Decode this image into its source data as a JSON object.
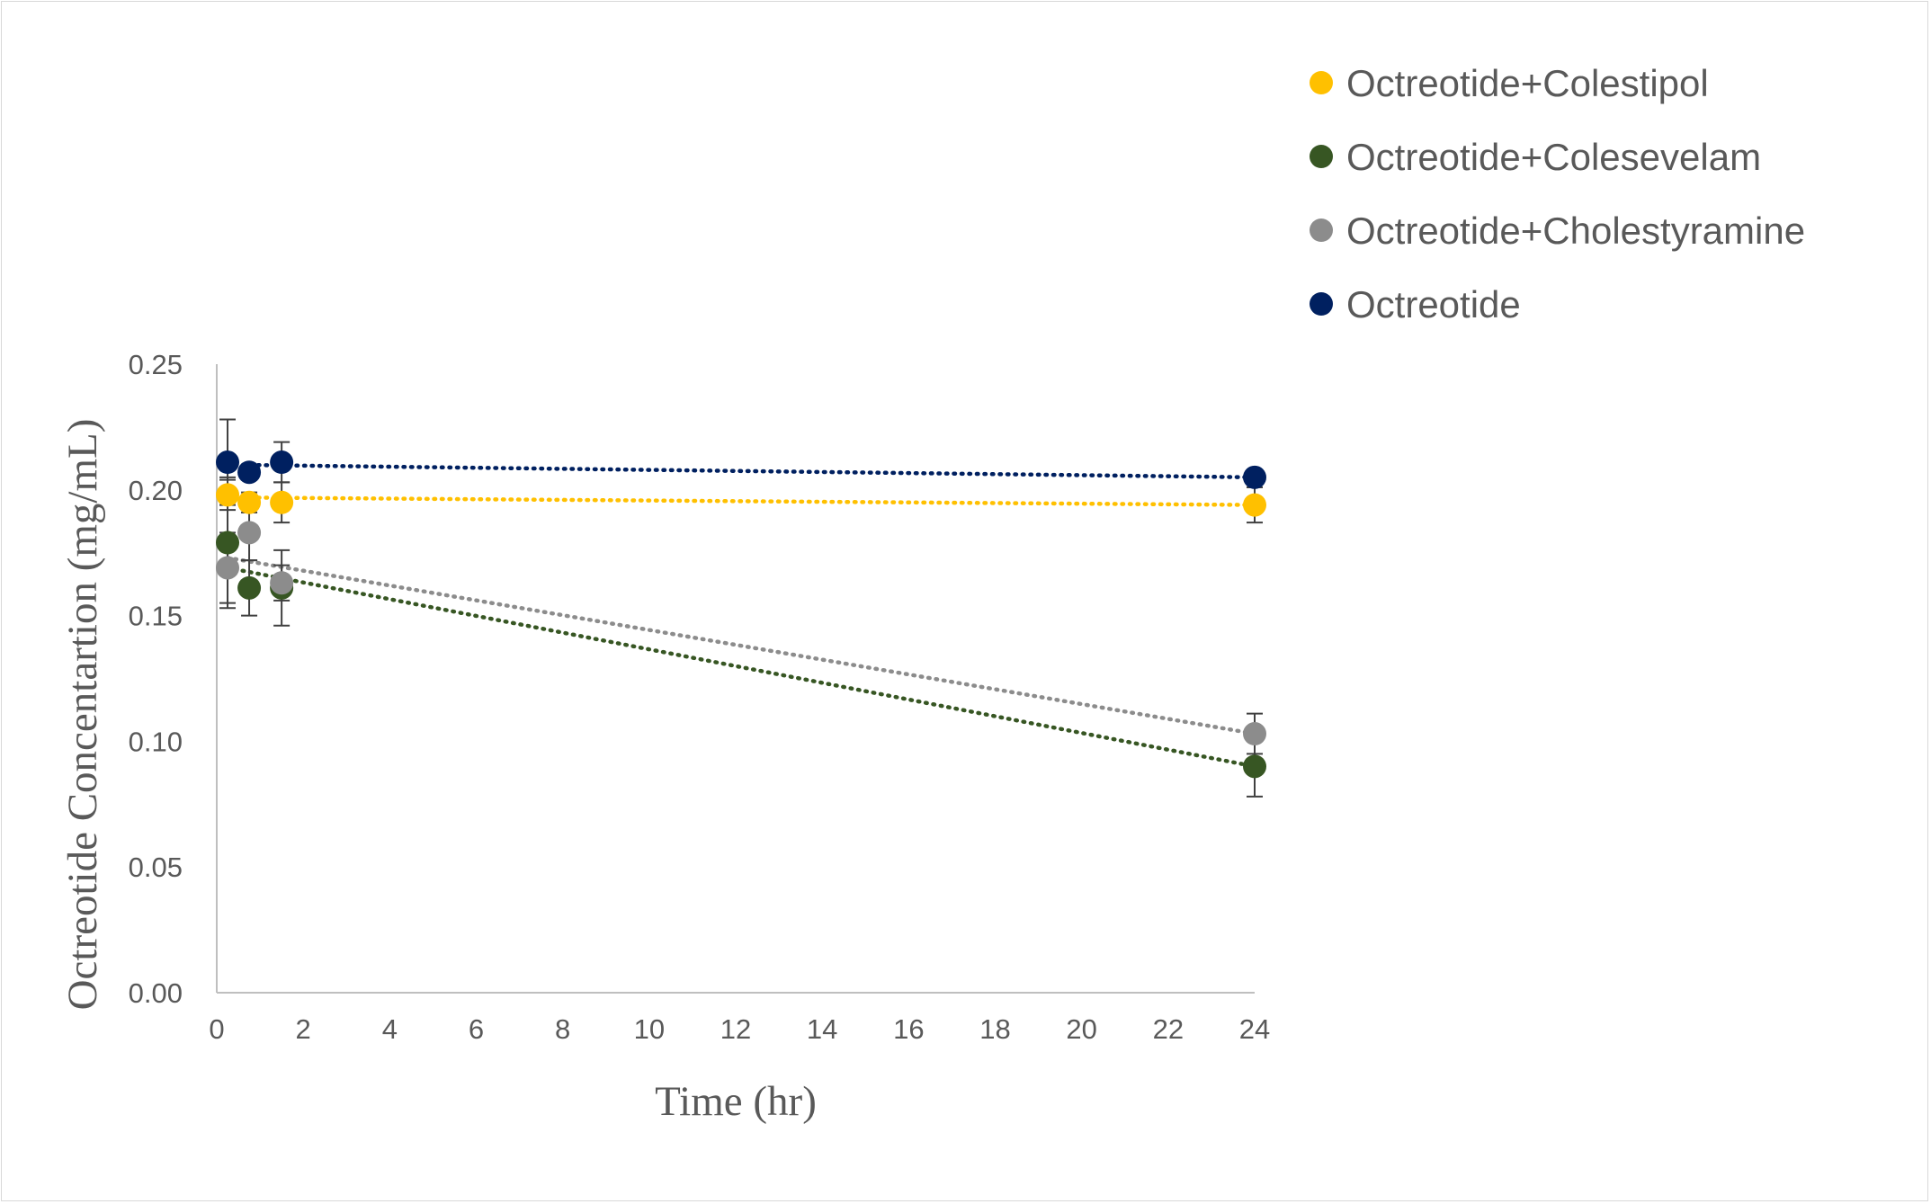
{
  "chart_data": {
    "type": "scatter",
    "title": "",
    "xlabel": "Time (hr)",
    "ylabel": "Octreotide Concentartion (mg/mL)",
    "xlim": [
      0,
      24
    ],
    "ylim": [
      0,
      0.25
    ],
    "xticks": [
      "0",
      "2",
      "4",
      "6",
      "8",
      "10",
      "12",
      "14",
      "16",
      "18",
      "20",
      "22",
      "24"
    ],
    "yticks": [
      "0.00",
      "0.05",
      "0.10",
      "0.15",
      "0.20",
      "0.25"
    ],
    "grid": false,
    "legend_position": "top-right",
    "trendlines": "linear, dotted",
    "series": [
      {
        "name": "Octreotide+Colestipol",
        "color": "#FFC000",
        "x": [
          0.25,
          0.75,
          1.5,
          24
        ],
        "y": [
          0.198,
          0.195,
          0.195,
          0.194
        ],
        "error": [
          0.006,
          0.004,
          0.008,
          0.007
        ],
        "trend": [
          0.197,
          0.194
        ]
      },
      {
        "name": "Octreotide+Colesevelam",
        "color": "#375623",
        "x": [
          0.25,
          0.75,
          1.5,
          24
        ],
        "y": [
          0.179,
          0.161,
          0.161,
          0.09
        ],
        "error": [
          0.026,
          0.011,
          0.015,
          0.012
        ],
        "trend": [
          0.169,
          0.09
        ]
      },
      {
        "name": "Octreotide+Cholestyramine",
        "color": "#8C8C8C",
        "x": [
          0.25,
          0.75,
          1.5,
          24
        ],
        "y": [
          0.169,
          0.183,
          0.163,
          0.103
        ],
        "error": [
          0.014,
          0.011,
          0.007,
          0.008
        ],
        "trend": [
          0.173,
          0.103
        ]
      },
      {
        "name": "Octreotide",
        "color": "#002060",
        "x": [
          0.25,
          0.75,
          1.5,
          24
        ],
        "y": [
          0.211,
          0.207,
          0.211,
          0.205
        ],
        "error": [
          0.017,
          0.003,
          0.008,
          0.003
        ],
        "trend": [
          0.21,
          0.205
        ]
      }
    ]
  }
}
